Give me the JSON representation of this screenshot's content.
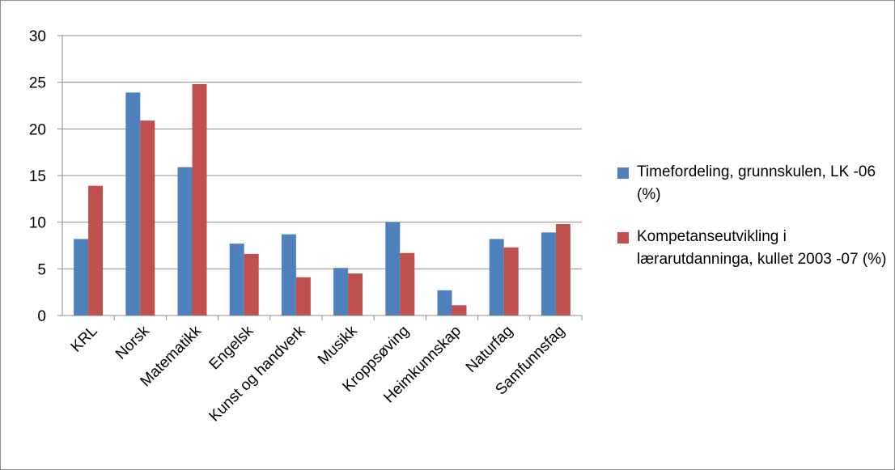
{
  "chart_data": {
    "type": "bar",
    "categories": [
      "KRL",
      "Norsk",
      "Matematikk",
      "Engelsk",
      "Kunst og handverk",
      "Musikk",
      "Kroppsøving",
      "Heimkunnskap",
      "Naturfag",
      "Samfunnsfag"
    ],
    "series": [
      {
        "name": "Timefordeling, grunnskulen, LK -06 (%)",
        "color": "#4f81bd",
        "values": [
          8.2,
          23.9,
          15.9,
          7.7,
          8.7,
          5.1,
          10.0,
          2.7,
          8.2,
          8.9
        ]
      },
      {
        "name": "Kompetanseutvikling i lærarutdanninga, kullet 2003 -07 (%)",
        "color": "#c0504d",
        "values": [
          13.9,
          20.9,
          24.8,
          6.6,
          4.1,
          4.5,
          6.7,
          1.1,
          7.3,
          9.8
        ]
      }
    ],
    "yticks": [
      "0",
      "5",
      "10",
      "15",
      "20",
      "25",
      "30"
    ],
    "ylim": [
      0,
      30
    ],
    "grid": true,
    "legend_position": "right",
    "title": "",
    "xlabel": "",
    "ylabel": ""
  }
}
